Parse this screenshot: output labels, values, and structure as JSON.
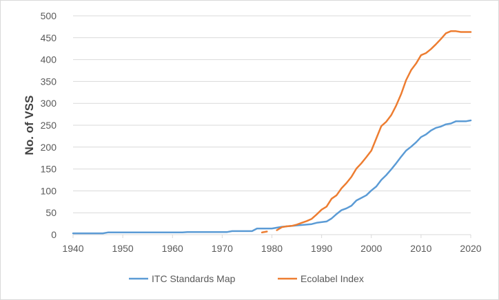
{
  "chart_data": {
    "type": "line",
    "title": "",
    "xlabel": "",
    "ylabel": "No. of VSS",
    "xlim": [
      1940,
      2020
    ],
    "ylim": [
      0,
      500
    ],
    "x_ticks": [
      "1940",
      "1950",
      "1960",
      "1970",
      "1980",
      "1990",
      "2000",
      "2010",
      "2020"
    ],
    "y_ticks": [
      "0",
      "50",
      "100",
      "150",
      "200",
      "250",
      "300",
      "350",
      "400",
      "450",
      "500"
    ],
    "grid": true,
    "legend_position": "bottom",
    "series": [
      {
        "name": "ITC Standards Map",
        "color": "#5B9BD5",
        "points": [
          [
            1940,
            3
          ],
          [
            1946,
            3
          ],
          [
            1947,
            5
          ],
          [
            1962,
            5
          ],
          [
            1963,
            6
          ],
          [
            1971,
            6
          ],
          [
            1972,
            8
          ],
          [
            1976,
            8
          ],
          [
            1977,
            14
          ],
          [
            1980,
            14
          ],
          [
            1982,
            18
          ],
          [
            1985,
            21
          ],
          [
            1987,
            23
          ],
          [
            1988,
            24
          ],
          [
            1989,
            27
          ],
          [
            1991,
            30
          ],
          [
            1992,
            37
          ],
          [
            1993,
            47
          ],
          [
            1994,
            56
          ],
          [
            1995,
            60
          ],
          [
            1996,
            66
          ],
          [
            1997,
            78
          ],
          [
            1998,
            84
          ],
          [
            1999,
            90
          ],
          [
            2000,
            101
          ],
          [
            2001,
            110
          ],
          [
            2002,
            125
          ],
          [
            2003,
            136
          ],
          [
            2004,
            149
          ],
          [
            2005,
            163
          ],
          [
            2006,
            178
          ],
          [
            2007,
            192
          ],
          [
            2008,
            201
          ],
          [
            2009,
            211
          ],
          [
            2010,
            223
          ],
          [
            2011,
            229
          ],
          [
            2012,
            238
          ],
          [
            2013,
            244
          ],
          [
            2014,
            247
          ],
          [
            2015,
            252
          ],
          [
            2016,
            254
          ],
          [
            2017,
            259
          ],
          [
            2019,
            259
          ],
          [
            2020,
            261
          ]
        ]
      },
      {
        "name": "Ecolabel Index",
        "color": "#ED7D31",
        "segments": [
          [
            [
              1978,
              5
            ],
            [
              1979,
              7
            ]
          ],
          [
            [
              1981,
              10
            ],
            [
              1982,
              17
            ],
            [
              1983,
              19
            ],
            [
              1984,
              20
            ],
            [
              1985,
              23
            ],
            [
              1986,
              27
            ],
            [
              1987,
              31
            ],
            [
              1988,
              36
            ],
            [
              1989,
              46
            ],
            [
              1990,
              57
            ],
            [
              1991,
              64
            ],
            [
              1992,
              82
            ],
            [
              1993,
              90
            ],
            [
              1994,
              106
            ],
            [
              1995,
              118
            ],
            [
              1996,
              132
            ],
            [
              1997,
              151
            ],
            [
              1998,
              163
            ],
            [
              1999,
              177
            ],
            [
              2000,
              192
            ],
            [
              2001,
              220
            ],
            [
              2002,
              248
            ],
            [
              2003,
              258
            ],
            [
              2004,
              273
            ],
            [
              2005,
              295
            ],
            [
              2006,
              321
            ],
            [
              2007,
              353
            ],
            [
              2008,
              376
            ],
            [
              2009,
              391
            ],
            [
              2010,
              410
            ],
            [
              2011,
              415
            ],
            [
              2012,
              424
            ],
            [
              2013,
              435
            ],
            [
              2014,
              447
            ],
            [
              2015,
              460
            ],
            [
              2016,
              465
            ],
            [
              2017,
              465
            ],
            [
              2018,
              463
            ],
            [
              2020,
              463
            ]
          ]
        ]
      }
    ]
  }
}
